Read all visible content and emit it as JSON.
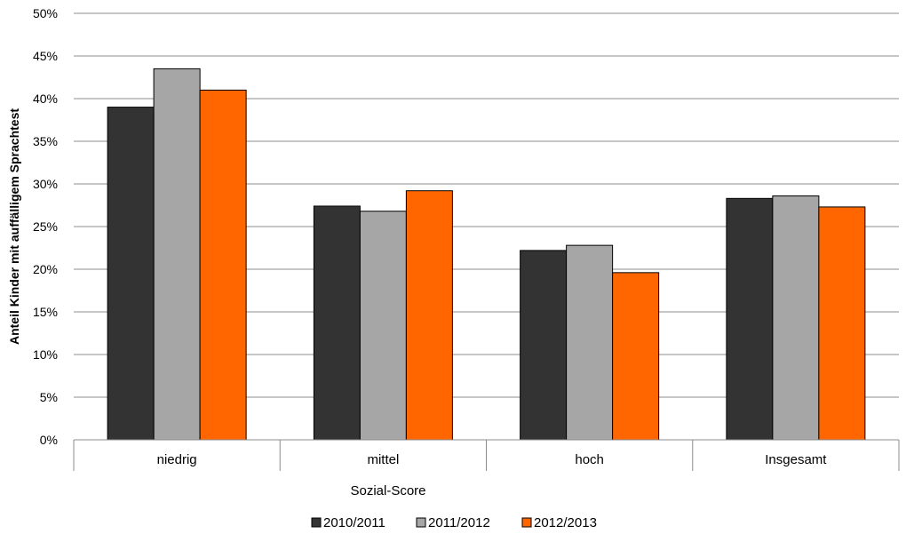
{
  "chart_data": {
    "type": "bar",
    "title": "",
    "xlabel": "Sozial-Score",
    "ylabel": "Anteil Kinder mit auffälligem Sprachtest",
    "ylim": [
      0,
      50
    ],
    "yticks": [
      "0%",
      "5%",
      "10%",
      "15%",
      "20%",
      "25%",
      "30%",
      "35%",
      "40%",
      "45%",
      "50%"
    ],
    "categories": [
      "niedrig",
      "mittel",
      "hoch",
      "Insgesamt"
    ],
    "series": [
      {
        "name": "2010/2011",
        "color": "#333333",
        "values": [
          39.0,
          27.4,
          22.2,
          28.3
        ]
      },
      {
        "name": "2011/2012",
        "color": "#a6a6a6",
        "values": [
          43.5,
          26.8,
          22.8,
          28.6
        ]
      },
      {
        "name": "2012/2013",
        "color": "#ff6600",
        "values": [
          41.0,
          29.2,
          19.6,
          27.3
        ]
      }
    ],
    "grid": true,
    "legend_position": "bottom"
  }
}
